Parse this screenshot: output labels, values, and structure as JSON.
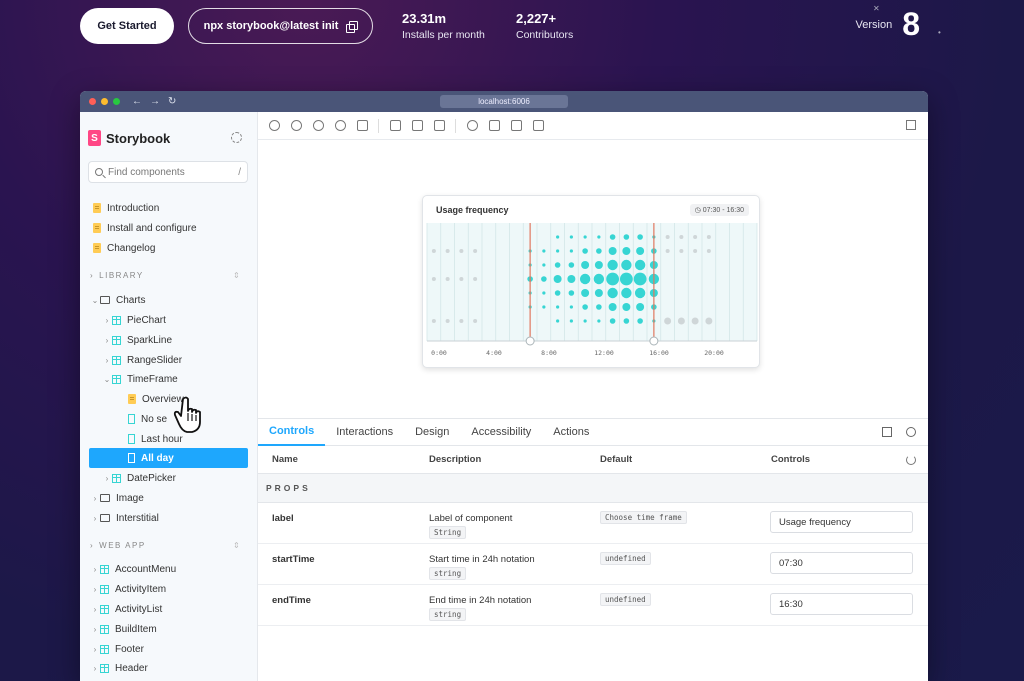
{
  "hero": {
    "get_started": "Get Started",
    "npx_command": "npx storybook@latest init",
    "stats": [
      {
        "value": "23.31m",
        "label": "Installs per month"
      },
      {
        "value": "2,227+",
        "label": "Contributors"
      }
    ],
    "version_label": "Version",
    "version_number": "8"
  },
  "browser": {
    "url": "localhost:6006"
  },
  "sidebar": {
    "brand": "Storybook",
    "search_placeholder": "Find components",
    "search_shortcut": "/",
    "docs": [
      "Introduction",
      "Install and configure",
      "Changelog"
    ],
    "library_label": "LIBRARY",
    "charts_label": "Charts",
    "chart_components": [
      "PieChart",
      "SparkLine",
      "RangeSlider",
      "TimeFrame"
    ],
    "timeframe_stories": [
      "Overview",
      "No se",
      "Last hour",
      "All day"
    ],
    "more_components": [
      "DatePicker"
    ],
    "folders": [
      "Image",
      "Interstitial"
    ],
    "webapp_label": "WEB APP",
    "webapp_components": [
      "AccountMenu",
      "ActivityItem",
      "ActivityList",
      "BuildItem",
      "Footer",
      "Header"
    ]
  },
  "canvas": {
    "card_title": "Usage frequency",
    "time_range": "07:30 - 16:30",
    "x_ticks": [
      "0:00",
      "4:00",
      "8:00",
      "12:00",
      "16:00",
      "20:00"
    ]
  },
  "colors": {
    "accent": "#1ea7fd",
    "teal": "#37d5d3",
    "selection_line": "#e0785f"
  },
  "panel": {
    "tabs": [
      "Controls",
      "Interactions",
      "Design",
      "Accessibility",
      "Actions"
    ],
    "columns": [
      "Name",
      "Description",
      "Default",
      "Controls"
    ],
    "props_label": "PROPS",
    "rows": [
      {
        "name": "label",
        "description": "Label of component",
        "type": "String",
        "default": "Choose time frame",
        "value": "Usage frequency"
      },
      {
        "name": "startTime",
        "description": "Start time in 24h notation",
        "type": "string",
        "default": "undefined",
        "value": "07:30"
      },
      {
        "name": "endTime",
        "description": "End time in 24h notation",
        "type": "string",
        "default": "undefined",
        "value": "16:30"
      }
    ]
  }
}
